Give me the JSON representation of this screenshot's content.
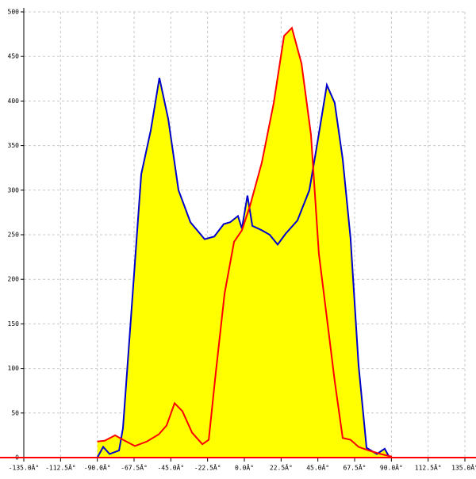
{
  "chart_data": {
    "type": "area",
    "fill_color": "#ffff00",
    "grid": true,
    "xlim": [
      -135,
      135
    ],
    "ylim": [
      0,
      500
    ],
    "xticks": [
      {
        "value": -135,
        "label": "-135.0Â°"
      },
      {
        "value": -112.5,
        "label": "-112.5Â°"
      },
      {
        "value": -90,
        "label": "-90.0Â°"
      },
      {
        "value": -67.5,
        "label": "-67.5Â°"
      },
      {
        "value": -45,
        "label": "-45.0Â°"
      },
      {
        "value": -22.5,
        "label": "-22.5Â°"
      },
      {
        "value": 0,
        "label": "0.0Â°"
      },
      {
        "value": 22.5,
        "label": "22.5Â°"
      },
      {
        "value": 45,
        "label": "45.0Â°"
      },
      {
        "value": 67.5,
        "label": "67.5Â°"
      },
      {
        "value": 90,
        "label": "90.0Â°"
      },
      {
        "value": 112.5,
        "label": "112.5Â°"
      },
      {
        "value": 135,
        "label": "135.0Â°"
      }
    ],
    "yticks": [
      0,
      50,
      100,
      150,
      200,
      250,
      300,
      350,
      400,
      450,
      500
    ],
    "series": [
      {
        "color": "#0000cc",
        "x": [
          -90,
          -86.4,
          -82.5,
          -76.7,
          -74.3,
          -69.4,
          -63.1,
          -57.3,
          -52,
          -46.6,
          -40.3,
          -33,
          -24.3,
          -18.4,
          -12.6,
          -8.7,
          -3.9,
          -1.5,
          1.9,
          4.9,
          10.7,
          15.5,
          20.4,
          25.2,
          32.5,
          39.8,
          44.7,
          50.5,
          55.3,
          60.2,
          65,
          69.9,
          74.8,
          81.1,
          85.9,
          88.3,
          90.3
        ],
        "values": [
          0,
          12,
          4,
          8,
          33,
          157,
          318,
          367,
          426,
          380,
          300,
          264,
          245,
          248,
          262,
          264,
          271,
          257,
          294,
          260,
          255,
          250,
          239,
          251,
          266,
          300,
          353,
          418,
          398,
          335,
          246,
          104,
          11,
          4,
          10,
          2,
          0
        ]
      },
      {
        "color": "#ff0000",
        "x": [
          -90,
          -85.4,
          -79.1,
          -74.3,
          -67,
          -59.7,
          -52.4,
          -47.6,
          -42.7,
          -37.9,
          -32,
          -25.7,
          -21.8,
          -17.5,
          -12.1,
          -6.3,
          -1.5,
          3.4,
          10.7,
          18,
          24.3,
          29.1,
          35,
          40.8,
          45.6,
          50.5,
          55.3,
          60.2,
          65,
          69.9,
          76.2,
          83.5,
          90.3
        ],
        "values": [
          18,
          19,
          25,
          20,
          13,
          18,
          26,
          36,
          61,
          52,
          28,
          15,
          20,
          95,
          184,
          242,
          255,
          282,
          331,
          398,
          473,
          482,
          442,
          362,
          229,
          157,
          86,
          22,
          20,
          12,
          8,
          4,
          1
        ]
      }
    ]
  }
}
